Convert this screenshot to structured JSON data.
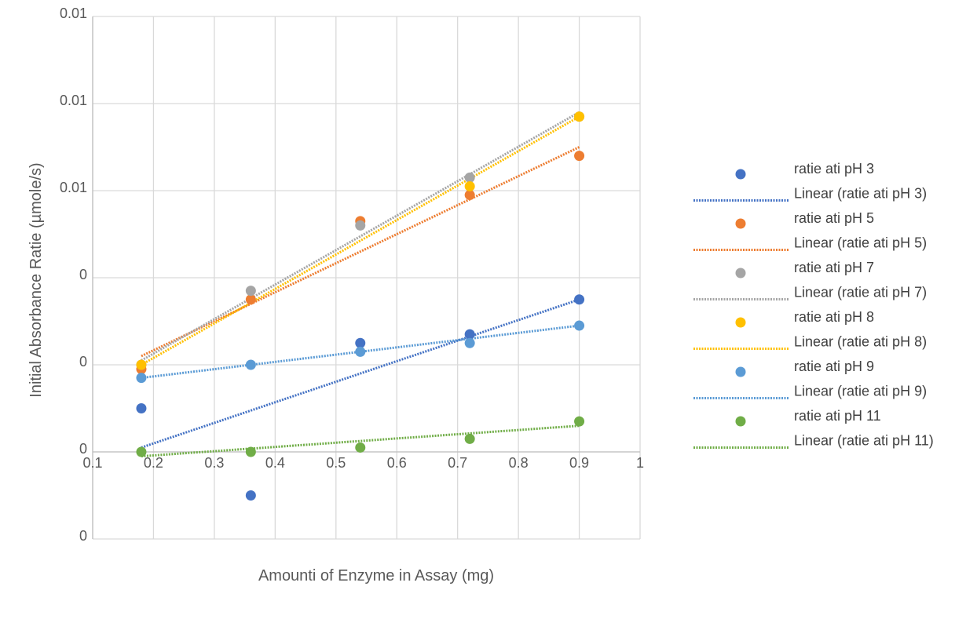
{
  "chart_data": {
    "type": "scatter",
    "title": "",
    "xlabel": "Amounti of Enzyme in Assay (mg)",
    "ylabel": "Initial Absorbance Ratie (µmole/s)",
    "xlim": [
      0.1,
      1.0
    ],
    "ylim": [
      0.0,
      0.012
    ],
    "x_ticks": [
      0.1,
      0.2,
      0.3,
      0.4,
      0.5,
      0.6,
      0.7,
      0.8,
      0.9,
      1.0
    ],
    "x_tick_labels": [
      "0.1",
      "0.2",
      "0.3",
      "0.4",
      "0.5",
      "0.6",
      "0.7",
      "0.8",
      "0.9",
      "1"
    ],
    "y_ticks": [
      0.0,
      0.002,
      0.004,
      0.006,
      0.008,
      0.01,
      0.012
    ],
    "y_tick_labels": [
      "0",
      "0",
      "0",
      "0",
      "0.01",
      "0.01",
      "0.01"
    ],
    "x_axis_at_y": 0.002,
    "grid": true,
    "legend_position": "right",
    "series": [
      {
        "name": "ratie ati pH 3",
        "trend_label": "Linear (ratie ati pH 3)",
        "color": "#4472C4",
        "x": [
          0.18,
          0.36,
          0.54,
          0.72,
          0.9
        ],
        "y": [
          0.003,
          0.001,
          0.0045,
          0.0047,
          0.0055
        ],
        "trend": [
          [
            0.18,
            0.0021
          ],
          [
            0.9,
            0.0055
          ]
        ]
      },
      {
        "name": "ratie ati pH 5",
        "trend_label": "Linear (ratie ati pH 5)",
        "color": "#ED7D31",
        "x": [
          0.18,
          0.36,
          0.54,
          0.72,
          0.9
        ],
        "y": [
          0.0039,
          0.0055,
          0.0073,
          0.0079,
          0.0088
        ],
        "trend": [
          [
            0.18,
            0.0042
          ],
          [
            0.9,
            0.009
          ]
        ]
      },
      {
        "name": "ratie ati pH 7",
        "trend_label": "Linear (ratie ati pH 7)",
        "color": "#A5A5A5",
        "x": [
          0.18,
          0.36,
          0.54,
          0.72,
          0.9
        ],
        "y": [
          0.004,
          0.0057,
          0.0072,
          0.0083,
          0.0097
        ],
        "trend": [
          [
            0.18,
            0.0041
          ],
          [
            0.9,
            0.0098
          ]
        ]
      },
      {
        "name": "ratie ati pH 8",
        "trend_label": "Linear (ratie ati pH 8)",
        "color": "#FFC000",
        "x": [
          0.18,
          0.72,
          0.9
        ],
        "y": [
          0.004,
          0.0081,
          0.0097
        ],
        "trend": [
          [
            0.18,
            0.004
          ],
          [
            0.9,
            0.0097
          ]
        ]
      },
      {
        "name": "ratie ati pH 9",
        "trend_label": "Linear (ratie ati pH 9)",
        "color": "#5B9BD5",
        "x": [
          0.18,
          0.36,
          0.54,
          0.72,
          0.9
        ],
        "y": [
          0.0037,
          0.004,
          0.0043,
          0.0045,
          0.0049
        ],
        "trend": [
          [
            0.18,
            0.0037
          ],
          [
            0.54,
            0.0043
          ],
          [
            0.9,
            0.0049
          ]
        ]
      },
      {
        "name": "ratie ati pH 11",
        "trend_label": "Linear (ratie ati pH 11)",
        "color": "#70AD47",
        "x": [
          0.18,
          0.36,
          0.54,
          0.72,
          0.9
        ],
        "y": [
          0.002,
          0.002,
          0.0021,
          0.0023,
          0.0027
        ],
        "trend": [
          [
            0.18,
            0.0019
          ],
          [
            0.9,
            0.0026
          ]
        ]
      }
    ]
  }
}
